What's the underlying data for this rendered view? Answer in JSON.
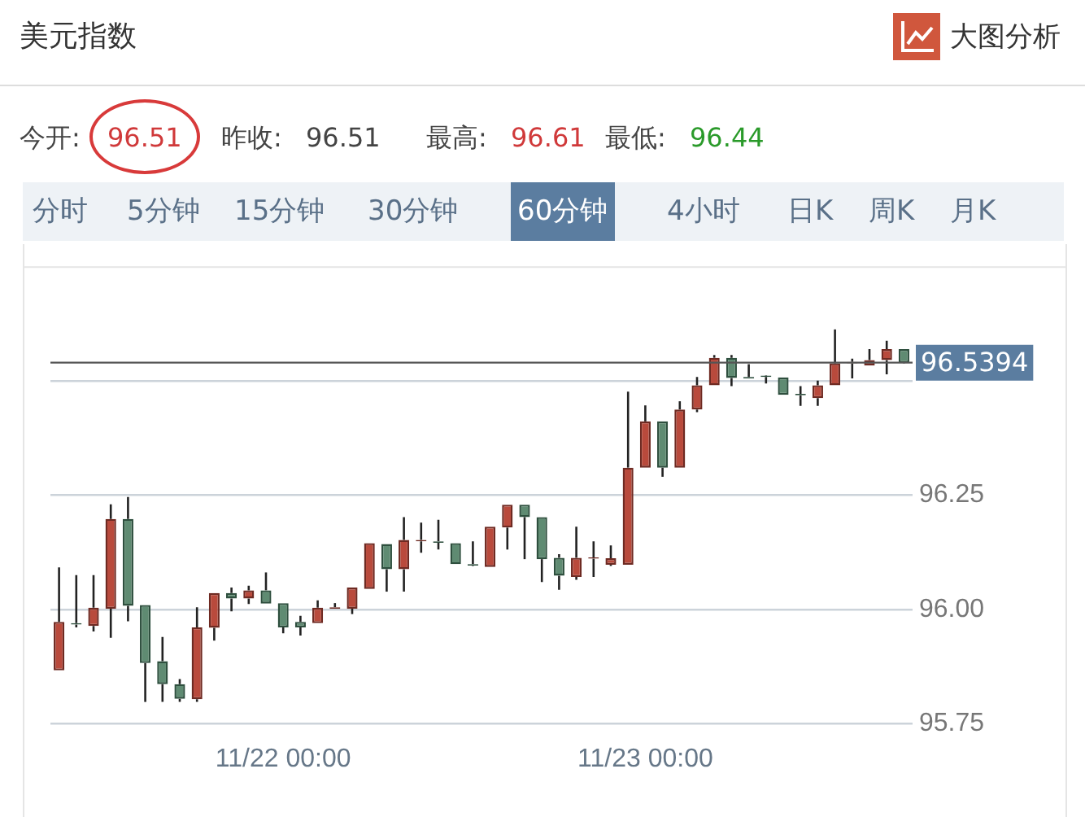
{
  "chart_data": {
    "type": "candlestick",
    "title": "美元指数",
    "annotations": [
      "大图分析",
      "今开:",
      "96.51",
      "昨收:",
      "96.51",
      "最高:",
      "96.61",
      "最低:",
      "96.44",
      "分时",
      "5分钟",
      "15分钟",
      "30分钟",
      "60分钟",
      "4小时",
      "日K",
      "周K",
      "月K"
    ],
    "categories": [
      null,
      null,
      null,
      null,
      null,
      null,
      null,
      null,
      null,
      null,
      null,
      null,
      null,
      "11/22 00:00",
      null,
      null,
      null,
      null,
      null,
      null,
      null,
      null,
      null,
      null,
      null,
      null,
      null,
      null,
      null,
      null,
      null,
      null,
      null,
      null,
      "11/23 00:00",
      null,
      null,
      null,
      null,
      null,
      null,
      null,
      null,
      null,
      null,
      null,
      null,
      null,
      null,
      null
    ],
    "ohlc": [
      [
        95.867,
        96.092,
        95.867,
        95.973
      ],
      [
        95.97,
        96.075,
        95.961,
        95.967
      ],
      [
        95.964,
        96.075,
        95.952,
        96.004
      ],
      [
        96.002,
        96.23,
        95.938,
        96.198
      ],
      [
        96.198,
        96.246,
        95.974,
        96.008
      ],
      [
        96.01,
        96.01,
        95.798,
        95.883
      ],
      [
        95.887,
        95.94,
        95.798,
        95.837
      ],
      [
        95.837,
        95.848,
        95.798,
        95.805
      ],
      [
        95.804,
        96.005,
        95.798,
        95.961
      ],
      [
        95.96,
        96.036,
        95.932,
        96.036
      ],
      [
        96.036,
        96.048,
        95.996,
        96.024
      ],
      [
        96.024,
        96.052,
        96.012,
        96.042
      ],
      [
        96.042,
        96.081,
        96.013,
        96.013
      ],
      [
        96.014,
        96.014,
        95.948,
        95.961
      ],
      [
        95.973,
        95.986,
        95.943,
        95.961
      ],
      [
        95.97,
        96.02,
        95.97,
        96.004
      ],
      [
        96.002,
        96.014,
        96.002,
        96.005
      ],
      [
        96.002,
        96.048,
        95.99,
        96.048
      ],
      [
        96.045,
        96.145,
        96.045,
        96.145
      ],
      [
        96.143,
        96.143,
        96.039,
        96.088
      ],
      [
        96.088,
        96.202,
        96.039,
        96.152
      ],
      [
        96.149,
        96.19,
        96.124,
        96.152
      ],
      [
        96.149,
        96.196,
        96.131,
        96.146
      ],
      [
        96.145,
        96.145,
        96.099,
        96.099
      ],
      [
        96.099,
        96.149,
        96.095,
        96.096
      ],
      [
        96.093,
        96.181,
        96.093,
        96.181
      ],
      [
        96.179,
        96.229,
        96.131,
        96.229
      ],
      [
        96.229,
        96.229,
        96.11,
        96.202
      ],
      [
        96.202,
        96.202,
        96.06,
        96.11
      ],
      [
        96.113,
        96.121,
        96.043,
        96.074
      ],
      [
        96.071,
        96.181,
        96.065,
        96.113
      ],
      [
        96.111,
        96.149,
        96.071,
        96.114
      ],
      [
        96.098,
        96.14,
        96.095,
        96.112
      ],
      [
        96.098,
        96.476,
        96.098,
        96.31
      ],
      [
        96.31,
        96.446,
        96.31,
        96.411
      ],
      [
        96.411,
        96.411,
        96.29,
        96.31
      ],
      [
        96.31,
        96.455,
        96.31,
        96.437
      ],
      [
        96.437,
        96.508,
        96.431,
        96.49
      ],
      [
        96.49,
        96.556,
        96.49,
        96.55
      ],
      [
        96.55,
        96.556,
        96.488,
        96.506
      ],
      [
        96.508,
        96.536,
        96.505,
        96.505
      ],
      [
        96.511,
        96.512,
        96.494,
        96.508
      ],
      [
        96.507,
        96.507,
        96.469,
        96.469
      ],
      [
        96.471,
        96.488,
        96.445,
        96.468
      ],
      [
        96.462,
        96.5,
        96.445,
        96.49
      ],
      [
        96.49,
        96.612,
        96.49,
        96.538
      ],
      [
        96.538,
        96.548,
        96.505,
        96.541
      ],
      [
        96.533,
        96.569,
        96.533,
        96.545
      ],
      [
        96.545,
        96.587,
        96.514,
        96.569
      ],
      [
        96.569,
        96.569,
        96.538,
        96.539
      ]
    ],
    "ylim": [
      95.75,
      96.75
    ],
    "yticks": [
      95.75,
      "96.00",
      96.25,
      {
        "value": 96.5,
        "label": null
      }
    ],
    "grid": "y",
    "ref_lines": [
      {
        "axis": "y",
        "value": 96.5394,
        "label": "96.5394",
        "color": "#555555"
      }
    ]
  }
}
